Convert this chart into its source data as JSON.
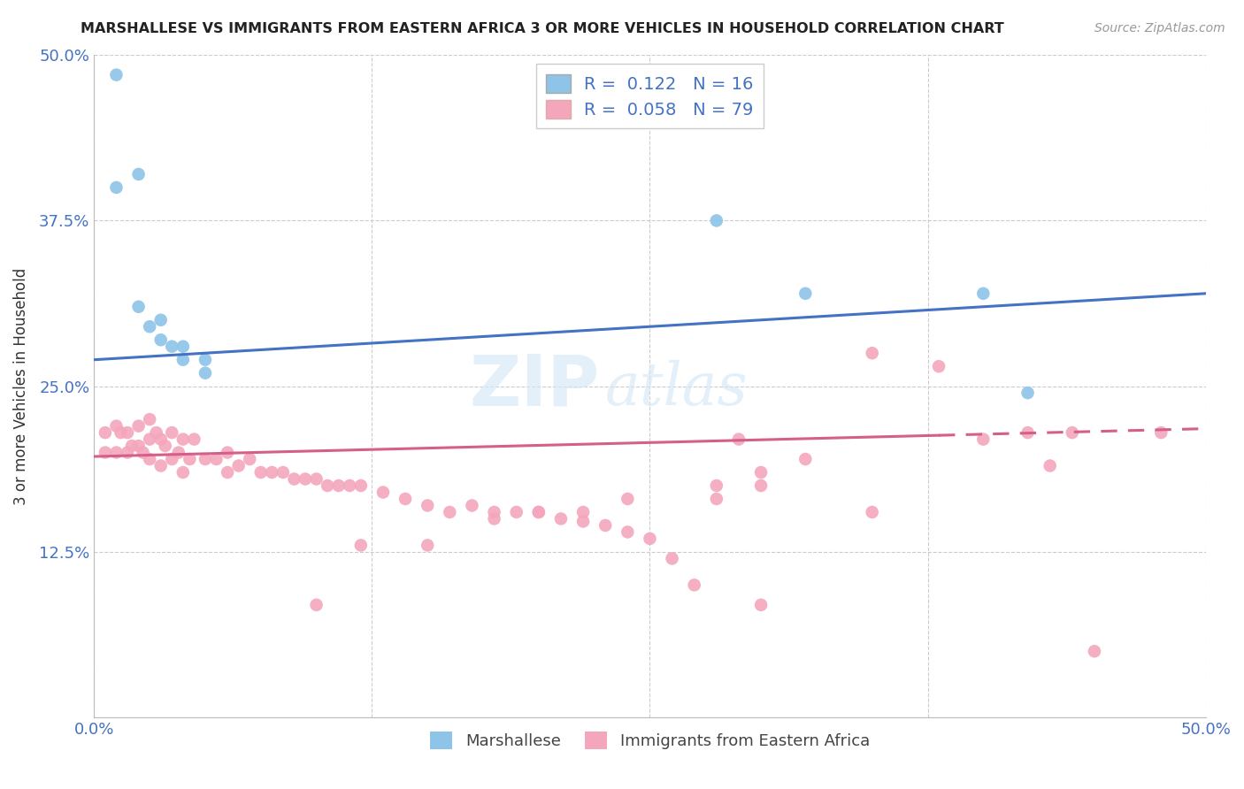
{
  "title": "MARSHALLESE VS IMMIGRANTS FROM EASTERN AFRICA 3 OR MORE VEHICLES IN HOUSEHOLD CORRELATION CHART",
  "source": "Source: ZipAtlas.com",
  "ylabel": "3 or more Vehicles in Household",
  "xlim": [
    0.0,
    0.5
  ],
  "ylim": [
    0.0,
    0.5
  ],
  "xticks": [
    0.0,
    0.125,
    0.25,
    0.375,
    0.5
  ],
  "xticklabels": [
    "0.0%",
    "",
    "",
    "",
    "50.0%"
  ],
  "yticks": [
    0.0,
    0.125,
    0.25,
    0.375,
    0.5
  ],
  "yticklabels": [
    "",
    "12.5%",
    "25.0%",
    "37.5%",
    "50.0%"
  ],
  "blue_r": 0.122,
  "blue_n": 16,
  "pink_r": 0.058,
  "pink_n": 79,
  "blue_color": "#8ec4e8",
  "pink_color": "#f4a7bc",
  "blue_line_color": "#4472c4",
  "pink_line_color": "#d45f8a",
  "watermark_text": "ZIP",
  "watermark_text2": "atlas",
  "blue_scatter_x": [
    0.01,
    0.01,
    0.02,
    0.02,
    0.025,
    0.03,
    0.03,
    0.035,
    0.04,
    0.04,
    0.05,
    0.05,
    0.28,
    0.32,
    0.4,
    0.42
  ],
  "blue_scatter_y": [
    0.485,
    0.4,
    0.41,
    0.31,
    0.295,
    0.3,
    0.285,
    0.28,
    0.28,
    0.27,
    0.27,
    0.26,
    0.375,
    0.32,
    0.32,
    0.245
  ],
  "pink_scatter_x": [
    0.005,
    0.005,
    0.01,
    0.01,
    0.012,
    0.015,
    0.015,
    0.017,
    0.02,
    0.02,
    0.022,
    0.025,
    0.025,
    0.025,
    0.028,
    0.03,
    0.03,
    0.032,
    0.035,
    0.035,
    0.038,
    0.04,
    0.04,
    0.043,
    0.045,
    0.05,
    0.055,
    0.06,
    0.06,
    0.065,
    0.07,
    0.075,
    0.08,
    0.085,
    0.09,
    0.095,
    0.1,
    0.105,
    0.11,
    0.115,
    0.12,
    0.13,
    0.14,
    0.15,
    0.16,
    0.17,
    0.18,
    0.19,
    0.2,
    0.21,
    0.22,
    0.23,
    0.24,
    0.25,
    0.26,
    0.27,
    0.28,
    0.29,
    0.3,
    0.3,
    0.32,
    0.35,
    0.38,
    0.4,
    0.43,
    0.44,
    0.45,
    0.2,
    0.24,
    0.3,
    0.1,
    0.12,
    0.15,
    0.18,
    0.22,
    0.28,
    0.35,
    0.42,
    0.48
  ],
  "pink_scatter_y": [
    0.215,
    0.2,
    0.22,
    0.2,
    0.215,
    0.215,
    0.2,
    0.205,
    0.22,
    0.205,
    0.2,
    0.225,
    0.21,
    0.195,
    0.215,
    0.21,
    0.19,
    0.205,
    0.215,
    0.195,
    0.2,
    0.21,
    0.185,
    0.195,
    0.21,
    0.195,
    0.195,
    0.2,
    0.185,
    0.19,
    0.195,
    0.185,
    0.185,
    0.185,
    0.18,
    0.18,
    0.18,
    0.175,
    0.175,
    0.175,
    0.175,
    0.17,
    0.165,
    0.16,
    0.155,
    0.16,
    0.155,
    0.155,
    0.155,
    0.15,
    0.148,
    0.145,
    0.14,
    0.135,
    0.12,
    0.1,
    0.165,
    0.21,
    0.085,
    0.175,
    0.195,
    0.275,
    0.265,
    0.21,
    0.19,
    0.215,
    0.05,
    0.155,
    0.165,
    0.185,
    0.085,
    0.13,
    0.13,
    0.15,
    0.155,
    0.175,
    0.155,
    0.215,
    0.215
  ],
  "blue_trend_x": [
    0.0,
    0.5
  ],
  "blue_trend_y": [
    0.27,
    0.32
  ],
  "pink_trend_x": [
    0.0,
    0.5
  ],
  "pink_trend_y": [
    0.197,
    0.218
  ]
}
